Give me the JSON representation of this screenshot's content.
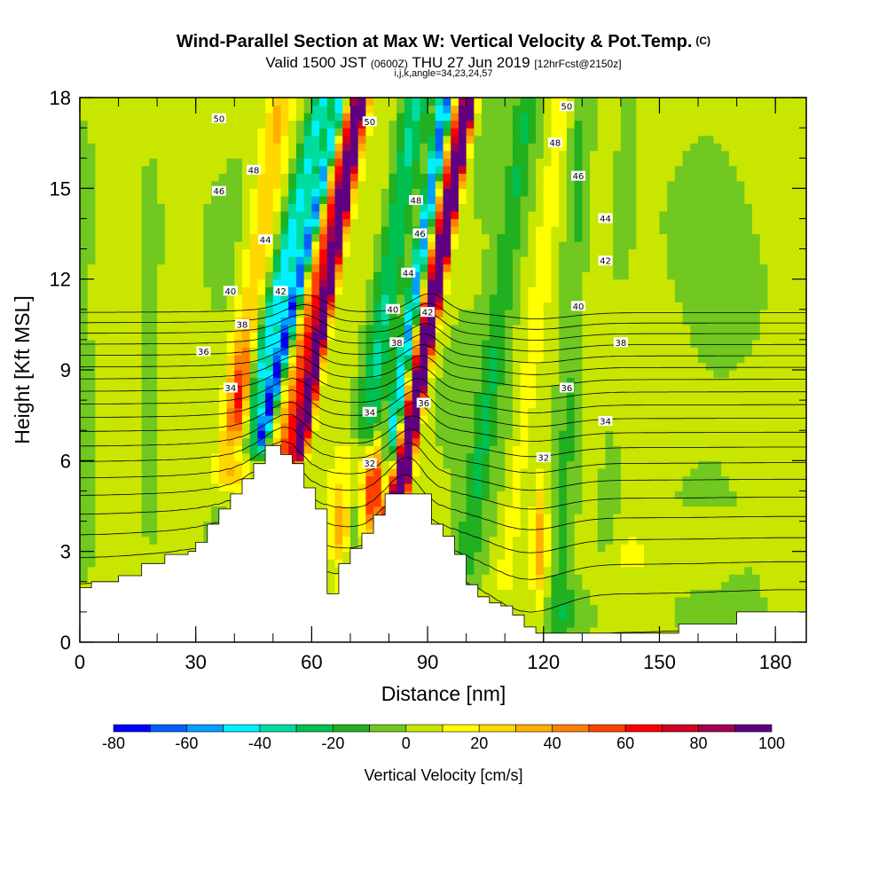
{
  "header": {
    "title": "Wind-Parallel Section at Max W: Vertical Velocity & Pot.Temp.",
    "copyright_mark": "(C)",
    "valid_prefix": "Valid 1500 JST",
    "valid_utc": "(0600Z)",
    "valid_date": "THU 27 Jun 2019",
    "forecast": "[12hrFcst@2150z]",
    "grid_info": "i,j,k,angle=34,23,24,57"
  },
  "chart_data": {
    "type": "heatmap",
    "xlabel": "Distance [nm]",
    "ylabel": "Height [Kft MSL]",
    "xlim": [
      0,
      188
    ],
    "ylim": [
      0,
      18
    ],
    "x_ticks": [
      0,
      30,
      60,
      90,
      120,
      150,
      180
    ],
    "y_ticks": [
      0,
      3,
      6,
      9,
      12,
      15,
      18
    ],
    "colorbar": {
      "label": "Vertical Velocity [cm/s]",
      "boundaries": [
        -80,
        -70,
        -60,
        -50,
        -40,
        -30,
        -20,
        -10,
        0,
        10,
        20,
        30,
        40,
        50,
        60,
        70,
        80,
        90,
        100
      ],
      "tick_labels": [
        -80,
        -60,
        -40,
        -20,
        0,
        20,
        40,
        60,
        80,
        100
      ],
      "colors": [
        "#0000ff",
        "#0060ff",
        "#00a0ff",
        "#00f0ff",
        "#00dca0",
        "#00c050",
        "#20b020",
        "#70c820",
        "#c8e600",
        "#ffff00",
        "#ffd800",
        "#ffb000",
        "#ff8000",
        "#ff4000",
        "#ff0000",
        "#d00020",
        "#a00050",
        "#600080"
      ]
    },
    "terrain": {
      "x": [
        0,
        3,
        3,
        10,
        10,
        16,
        16,
        22,
        22,
        28,
        28,
        30,
        30,
        33,
        33,
        36,
        36,
        39,
        39,
        42,
        42,
        45,
        45,
        48,
        48,
        52,
        52,
        55,
        55,
        58,
        58,
        61,
        61,
        64,
        64,
        67,
        67,
        70,
        70,
        73,
        73,
        76,
        76,
        79,
        79,
        82,
        82,
        85,
        85,
        88,
        88,
        91,
        91,
        94,
        94,
        97,
        97,
        100,
        100,
        103,
        103,
        106,
        106,
        109,
        109,
        112,
        112,
        115,
        115,
        118,
        118,
        124,
        124,
        140,
        140,
        155,
        155,
        170,
        170,
        176,
        176,
        188
      ],
      "height": [
        1.8,
        1.8,
        2.0,
        2.0,
        2.2,
        2.2,
        2.6,
        2.6,
        2.9,
        2.9,
        3.0,
        3.0,
        3.3,
        3.3,
        3.9,
        3.9,
        4.4,
        4.4,
        4.9,
        4.9,
        5.4,
        5.4,
        5.9,
        5.9,
        6.5,
        6.5,
        6.2,
        6.2,
        5.9,
        5.9,
        5.1,
        5.1,
        4.4,
        4.4,
        1.6,
        1.6,
        2.6,
        2.6,
        3.1,
        3.1,
        3.6,
        3.6,
        4.2,
        4.2,
        4.9,
        4.9,
        4.9,
        4.9,
        4.9,
        4.9,
        4.9,
        4.9,
        3.9,
        3.9,
        3.5,
        3.5,
        2.9,
        2.9,
        1.9,
        1.9,
        1.5,
        1.5,
        1.3,
        1.3,
        1.2,
        1.2,
        0.9,
        0.9,
        0.5,
        0.5,
        0.3,
        0.3,
        0.3,
        0.3,
        0.3,
        0.3,
        0.6,
        0.6,
        1.0,
        1.0,
        1.0,
        1.0
      ]
    },
    "velocity_features": [
      {
        "x_bottom": 38,
        "y_bottom": 5.5,
        "x_top": 52,
        "y_top": 18,
        "value": 30,
        "width": 3.5
      },
      {
        "x_bottom": 42,
        "y_bottom": 6.3,
        "x_top": 63,
        "y_top": 18,
        "value": -45,
        "width": 3.0
      },
      {
        "x_bottom": 47,
        "y_bottom": 6.7,
        "x_top": 68,
        "y_top": 18,
        "value": -70,
        "width": 1.8
      },
      {
        "x_bottom": 54,
        "y_bottom": 6.3,
        "x_top": 71,
        "y_top": 18,
        "value": 60,
        "width": 3.5
      },
      {
        "x_bottom": 57,
        "y_bottom": 6.3,
        "x_top": 73,
        "y_top": 18,
        "value": 85,
        "width": 1.6
      },
      {
        "x_bottom": 69,
        "y_bottom": 2.5,
        "x_top": 87,
        "y_top": 18,
        "value": -35,
        "width": 3.5
      },
      {
        "x_bottom": 77,
        "y_bottom": 3.4,
        "x_top": 95,
        "y_top": 18,
        "value": -75,
        "width": 2.0
      },
      {
        "x_bottom": 80,
        "y_bottom": 4.0,
        "x_top": 99,
        "y_top": 18,
        "value": 65,
        "width": 3.0
      },
      {
        "x_bottom": 83,
        "y_bottom": 4.8,
        "x_top": 101,
        "y_top": 18,
        "value": 100,
        "width": 1.5
      },
      {
        "x_bottom": 100,
        "y_bottom": 2.5,
        "x_top": 116,
        "y_top": 18,
        "value": -20,
        "width": 3.0
      },
      {
        "x_bottom": 110,
        "y_bottom": 2.0,
        "x_top": 125,
        "y_top": 18,
        "value": 15,
        "width": 2.5
      },
      {
        "x_bottom": 124,
        "y_bottom": 0.8,
        "x_top": 130,
        "y_top": 18,
        "value": -15,
        "width": 3.0
      },
      {
        "x_bottom": 136,
        "y_bottom": 3.0,
        "x_top": 142,
        "y_top": 18,
        "value": -5,
        "width": 4.0
      }
    ],
    "velocity_blobs": [
      {
        "x": 42,
        "y": 7.5,
        "rx": 3,
        "ry": 2.2,
        "value": 45
      },
      {
        "x": 77,
        "y": 4.3,
        "rx": 4,
        "ry": 1.4,
        "value": 65
      },
      {
        "x": 75,
        "y": 5.7,
        "rx": 6,
        "ry": 1.2,
        "value": 40
      },
      {
        "x": 68,
        "y": 3.5,
        "rx": 3,
        "ry": 1.6,
        "value": 50
      },
      {
        "x": 119,
        "y": 3.3,
        "rx": 2,
        "ry": 2.2,
        "value": 35
      },
      {
        "x": 160,
        "y": 3.0,
        "rx": 9,
        "ry": 1.0,
        "value": 12
      },
      {
        "x": 143,
        "y": 3.0,
        "rx": 4,
        "ry": 0.8,
        "value": 12
      },
      {
        "x": 127,
        "y": 0.8,
        "rx": 7,
        "ry": 1.2,
        "value": -14
      },
      {
        "x": 2,
        "y": 8,
        "rx": 2,
        "ry": 8,
        "value": -6
      },
      {
        "x": 18,
        "y": 10,
        "rx": 4,
        "ry": 8,
        "value": -7
      }
    ],
    "theta_contours": [
      30,
      31,
      32,
      33,
      34,
      35,
      36,
      37,
      38,
      39,
      40,
      41,
      42,
      43,
      44,
      45,
      46,
      47,
      48,
      49,
      50,
      51
    ],
    "theta_labels": [
      {
        "value": "50",
        "x": 36,
        "y": 17.3
      },
      {
        "value": "48",
        "x": 45,
        "y": 15.6
      },
      {
        "value": "46",
        "x": 36,
        "y": 14.9
      },
      {
        "value": "44",
        "x": 48,
        "y": 13.3
      },
      {
        "value": "42",
        "x": 52,
        "y": 11.6
      },
      {
        "value": "40",
        "x": 39,
        "y": 11.6
      },
      {
        "value": "38",
        "x": 42,
        "y": 10.5
      },
      {
        "value": "36",
        "x": 32,
        "y": 9.6
      },
      {
        "value": "34",
        "x": 39,
        "y": 8.4
      },
      {
        "value": "50",
        "x": 75,
        "y": 17.2
      },
      {
        "value": "48",
        "x": 87,
        "y": 14.6
      },
      {
        "value": "46",
        "x": 88,
        "y": 13.5
      },
      {
        "value": "44",
        "x": 85,
        "y": 12.2
      },
      {
        "value": "42",
        "x": 90,
        "y": 10.9
      },
      {
        "value": "40",
        "x": 81,
        "y": 11.0
      },
      {
        "value": "38",
        "x": 82,
        "y": 9.9
      },
      {
        "value": "36",
        "x": 89,
        "y": 7.9
      },
      {
        "value": "34",
        "x": 75,
        "y": 7.6
      },
      {
        "value": "32",
        "x": 75,
        "y": 5.9
      },
      {
        "value": "50",
        "x": 126,
        "y": 17.7
      },
      {
        "value": "48",
        "x": 123,
        "y": 16.5
      },
      {
        "value": "46",
        "x": 129,
        "y": 15.4
      },
      {
        "value": "44",
        "x": 136,
        "y": 14.0
      },
      {
        "value": "42",
        "x": 136,
        "y": 12.6
      },
      {
        "value": "40",
        "x": 129,
        "y": 11.1
      },
      {
        "value": "38",
        "x": 140,
        "y": 9.9
      },
      {
        "value": "36",
        "x": 126,
        "y": 8.4
      },
      {
        "value": "34",
        "x": 136,
        "y": 7.3
      },
      {
        "value": "32",
        "x": 120,
        "y": 6.1
      }
    ]
  }
}
